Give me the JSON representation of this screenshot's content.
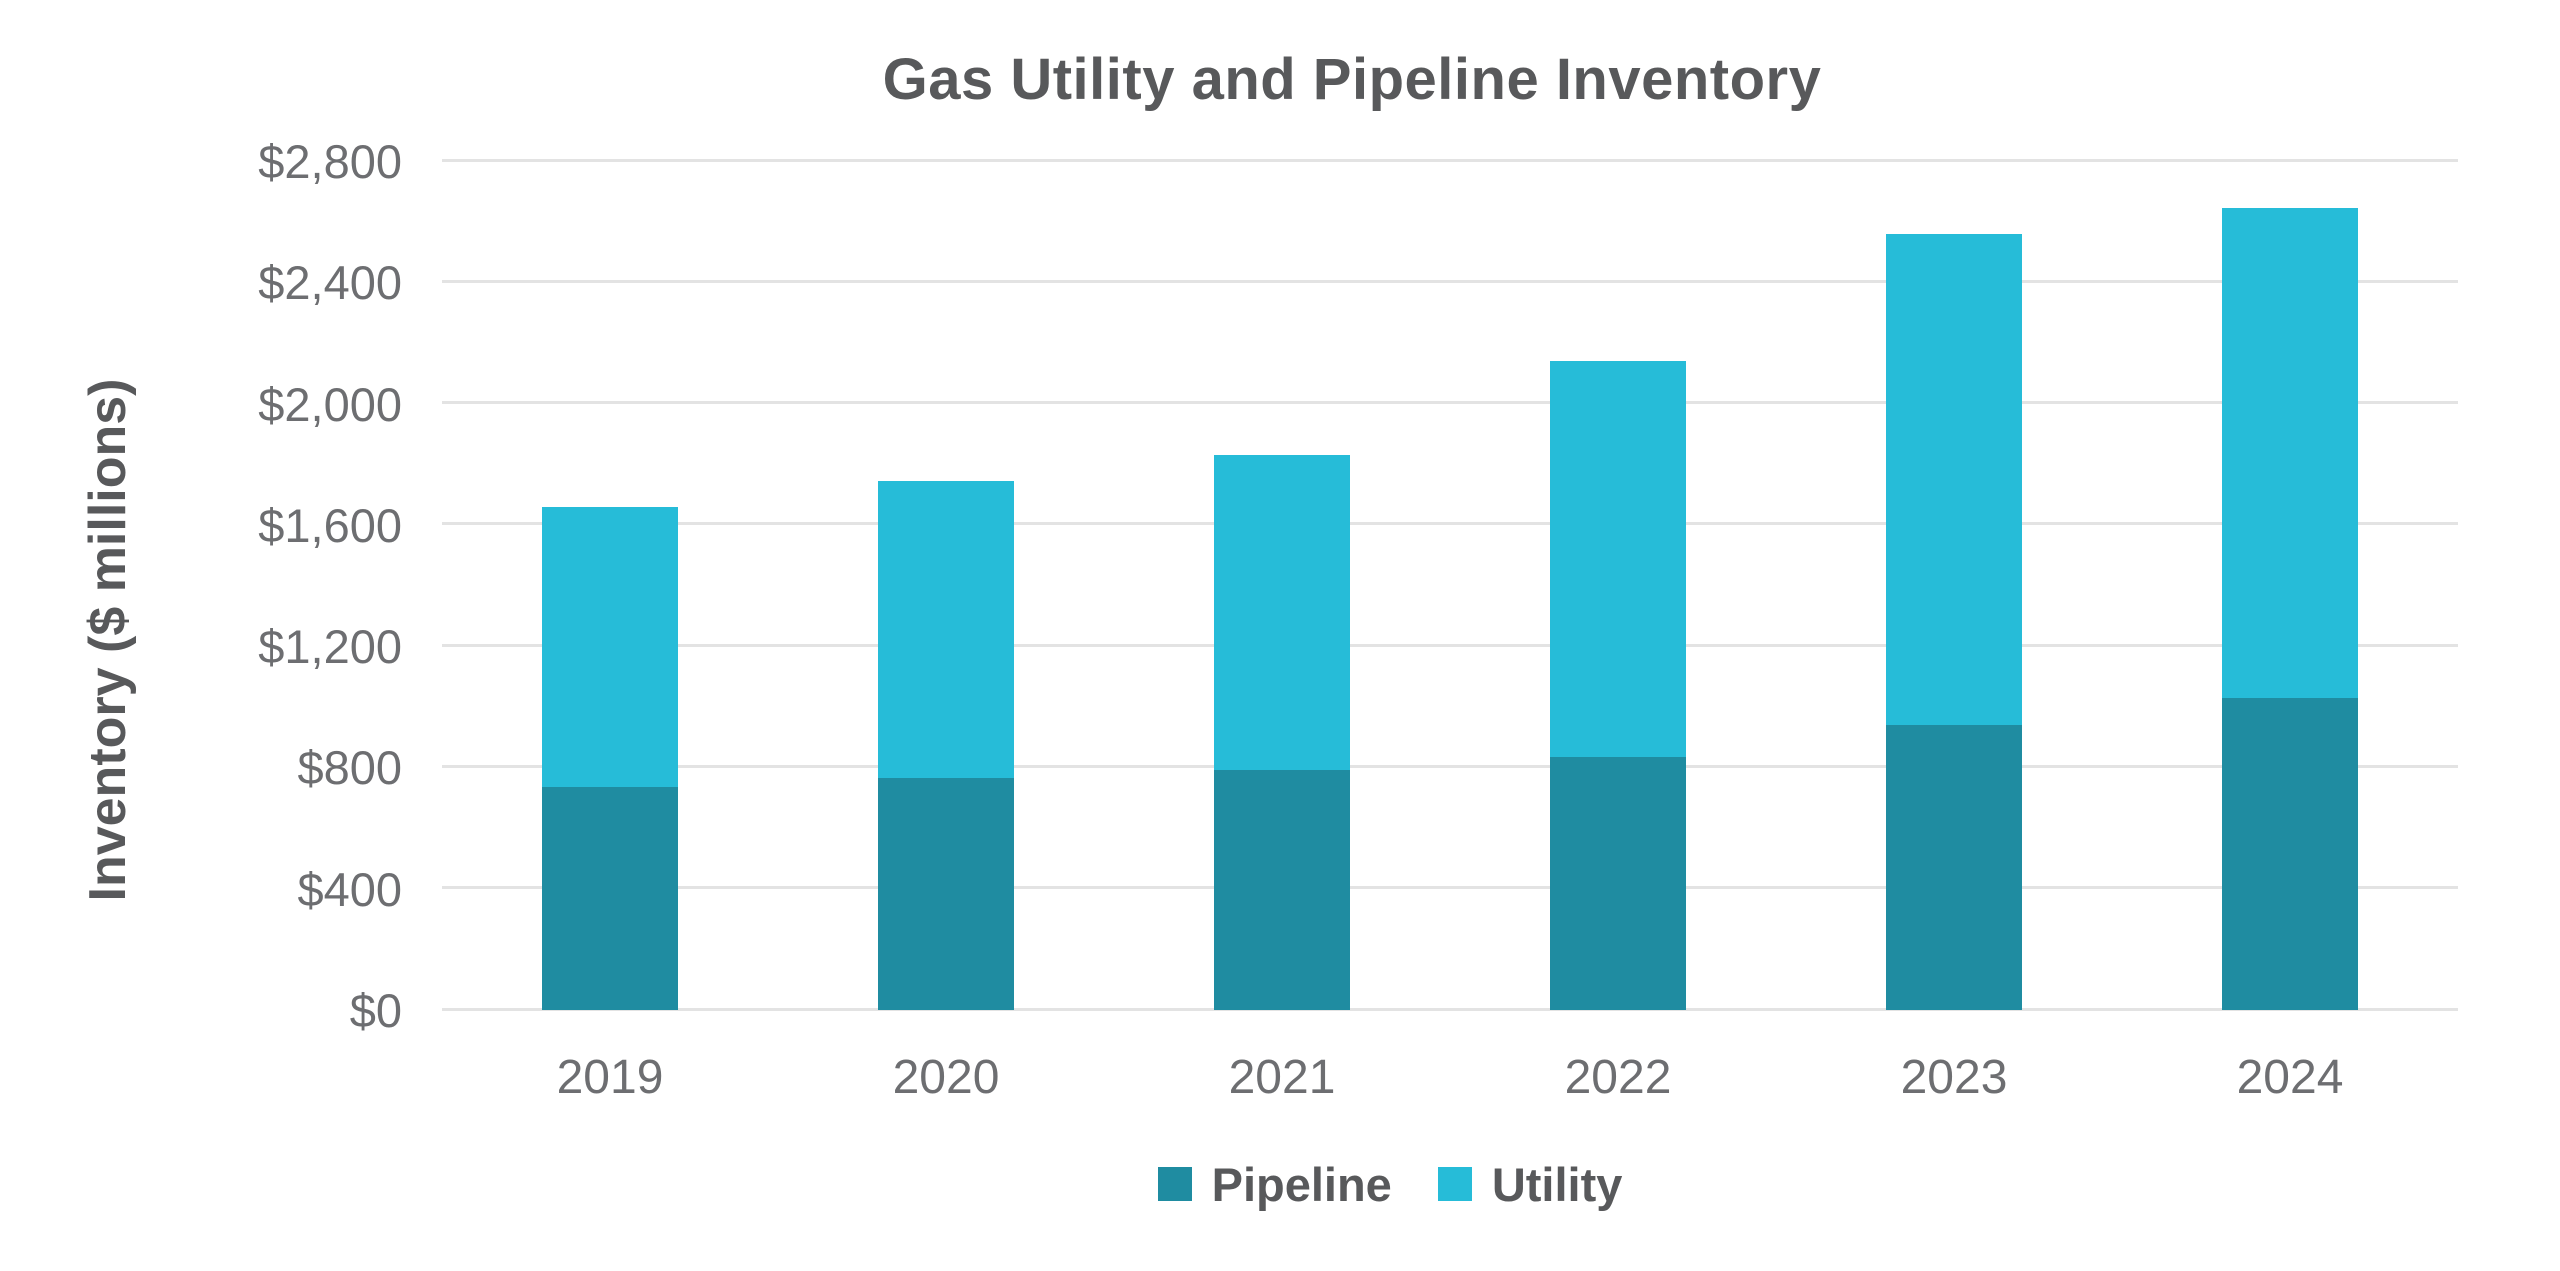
{
  "chart_data": {
    "type": "bar",
    "stacked": true,
    "title": "Gas Utility and Pipeline Inventory",
    "ylabel": "Inventory ($ millions)",
    "categories": [
      "2019",
      "2020",
      "2021",
      "2022",
      "2023",
      "2024"
    ],
    "series": [
      {
        "name": "Pipeline",
        "color": "#1F8CA1",
        "values": [
          735,
          765,
          790,
          835,
          940,
          1030
        ]
      },
      {
        "name": "Utility",
        "color": "#26BCD8",
        "values": [
          925,
          980,
          1040,
          1305,
          1620,
          1615
        ]
      }
    ],
    "ylim": [
      0,
      2800
    ],
    "ytick_step": 400,
    "ytick_labels": [
      "$0",
      "$400",
      "$800",
      "$1,200",
      "$1,600",
      "$2,000",
      "$2,400",
      "$2,800"
    ],
    "grid": true,
    "legend_position": "bottom",
    "colors": {
      "title_text": "#58595B",
      "tick_text": "#6D6E71",
      "gridline": "#E3E3E3",
      "background": "#FFFFFF"
    }
  }
}
